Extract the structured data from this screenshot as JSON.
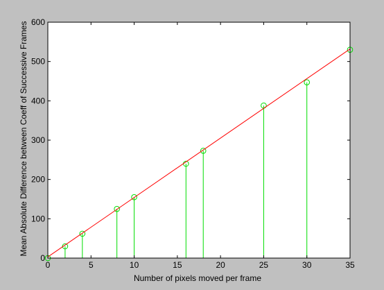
{
  "figure": {
    "background_color": "#c0c0c0",
    "axes_background_color": "#ffffff"
  },
  "chart_data": {
    "type": "stem",
    "title": "",
    "xlabel": "Number of pixels moved per frame",
    "ylabel": "Mean Absolute Difference between Coeff of Successive Frames",
    "xlim": [
      0,
      35
    ],
    "ylim": [
      0,
      600
    ],
    "xticks": [
      0,
      5,
      10,
      15,
      20,
      25,
      30,
      35
    ],
    "yticks": [
      0,
      100,
      200,
      300,
      400,
      500,
      600
    ],
    "grid": false,
    "legend": "none",
    "series": [
      {
        "kind": "stem",
        "color": "#00dd00",
        "marker": "circle",
        "x": [
          0,
          2,
          4,
          8,
          10,
          16,
          18,
          25,
          30,
          35
        ],
        "y": [
          0,
          30,
          62,
          125,
          155,
          240,
          273,
          388,
          447,
          530
        ]
      },
      {
        "kind": "fit-line",
        "color": "#ff0000",
        "x": [
          0,
          35
        ],
        "y": [
          3,
          532
        ]
      }
    ]
  }
}
